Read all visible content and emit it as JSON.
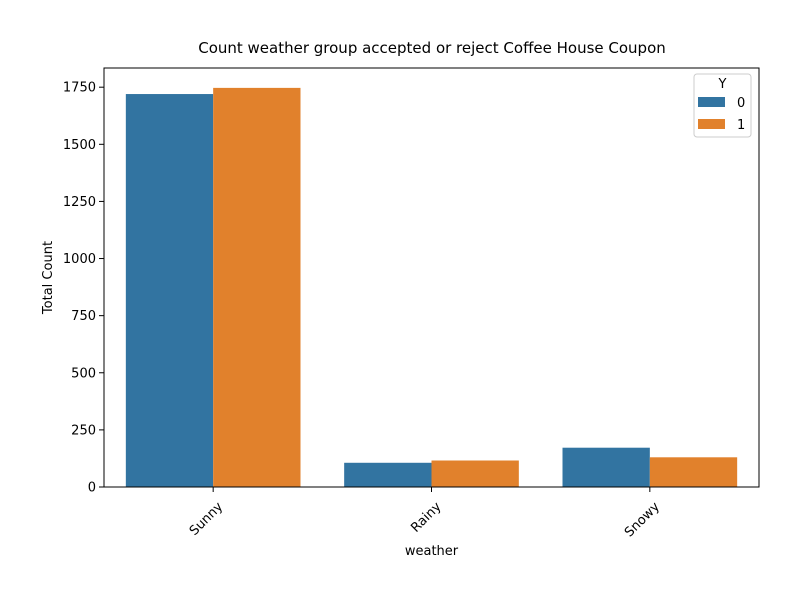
{
  "chart_data": {
    "type": "bar",
    "title": "Count weather group accepted or reject Coffee House Coupon",
    "xlabel": "weather",
    "ylabel": "Total Count",
    "categories": [
      "Sunny",
      "Rainy",
      "Snowy"
    ],
    "series": [
      {
        "name": "0",
        "color": "#3274a1",
        "values": [
          1720,
          106,
          172
        ]
      },
      {
        "name": "1",
        "color": "#e1812c",
        "values": [
          1747,
          116,
          130
        ]
      }
    ],
    "ylim": [
      0,
      1834
    ],
    "yticks": [
      0,
      250,
      500,
      750,
      1000,
      1250,
      1500,
      1750
    ],
    "legend": {
      "title": "Y",
      "placement": "top-right"
    },
    "grid": false
  }
}
